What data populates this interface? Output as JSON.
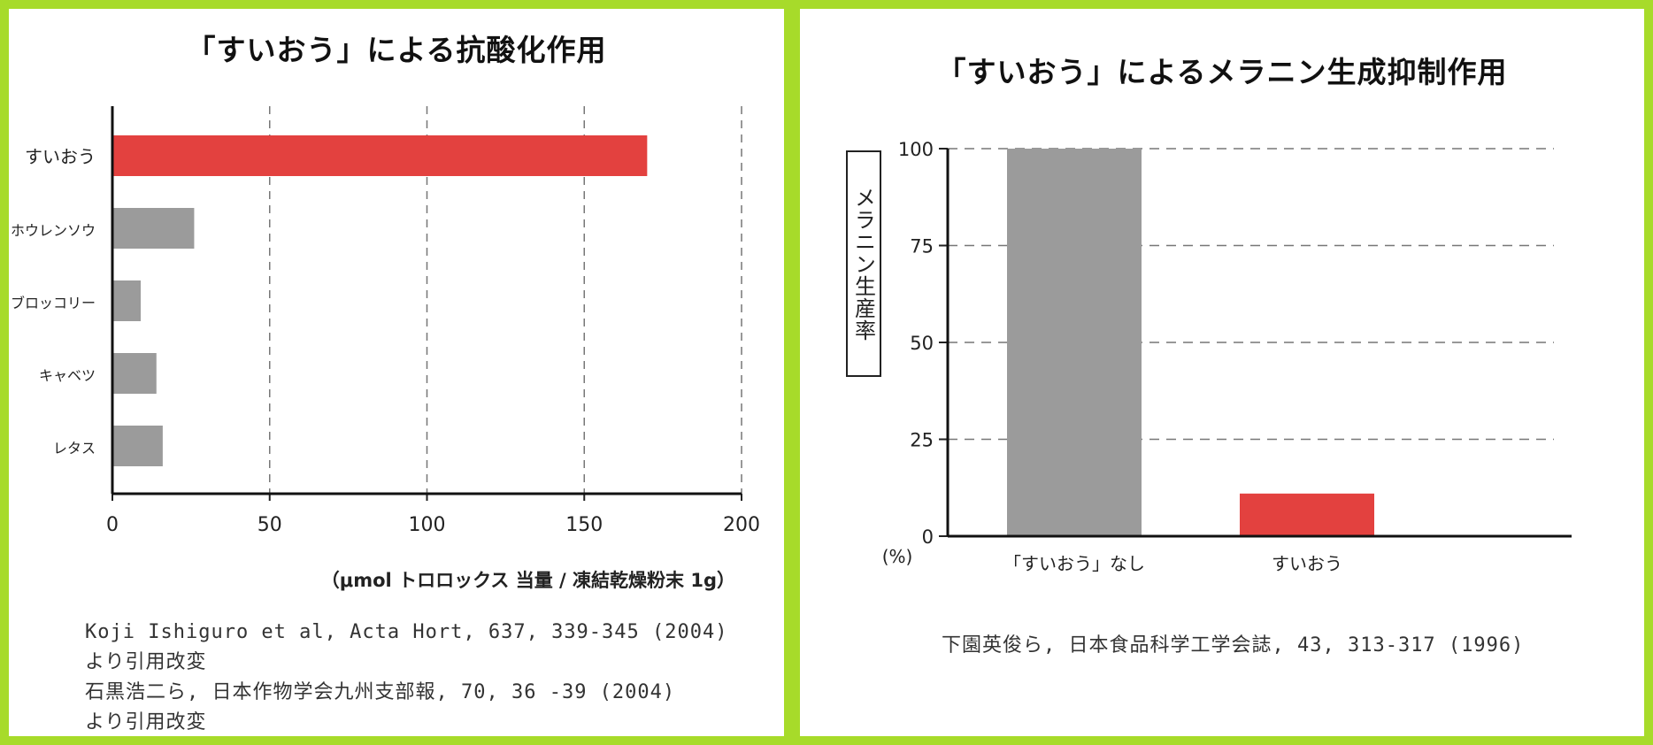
{
  "chart_data": [
    {
      "type": "bar",
      "orientation": "horizontal",
      "title": "「すいおう」による抗酸化作用",
      "categories": [
        "すいおう",
        "ホウレンソウ",
        "ブロッコリー",
        "キャベツ",
        "レタス"
      ],
      "values": [
        170,
        26,
        9,
        14,
        16
      ],
      "bar_colors": [
        "#e3413f",
        "#9b9b9b",
        "#9b9b9b",
        "#9b9b9b",
        "#9b9b9b"
      ],
      "xlim": [
        0,
        200
      ],
      "x_ticks": [
        "0",
        "50",
        "100",
        "150",
        "200"
      ],
      "grid": "vertical dashed",
      "unit": "（μmol トロロックス 当量 / 凍結乾燥粉末 1g）",
      "source_lines": [
        "Koji Ishiguro et al, Acta Hort, 637, 339-345 (2004)",
        "より引用改変",
        "石黒浩二ら, 日本作物学会九州支部報, 70, 36 -39 (2004)",
        "より引用改変"
      ]
    },
    {
      "type": "bar",
      "orientation": "vertical",
      "title": "「すいおう」によるメラニン生成抑制作用",
      "categories": [
        "「すいおう」なし",
        "すいおう"
      ],
      "values": [
        100,
        11
      ],
      "bar_colors": [
        "#9b9b9b",
        "#e3413f"
      ],
      "ylim": [
        0,
        100
      ],
      "y_ticks": [
        "0",
        "25",
        "50",
        "75",
        "100"
      ],
      "ylabel": "メラニン生産率",
      "y_unit": "(%)",
      "grid": "horizontal dashed",
      "source": "下園英俊ら, 日本食品科学工学会誌, 43, 313-317 (1996)"
    }
  ]
}
